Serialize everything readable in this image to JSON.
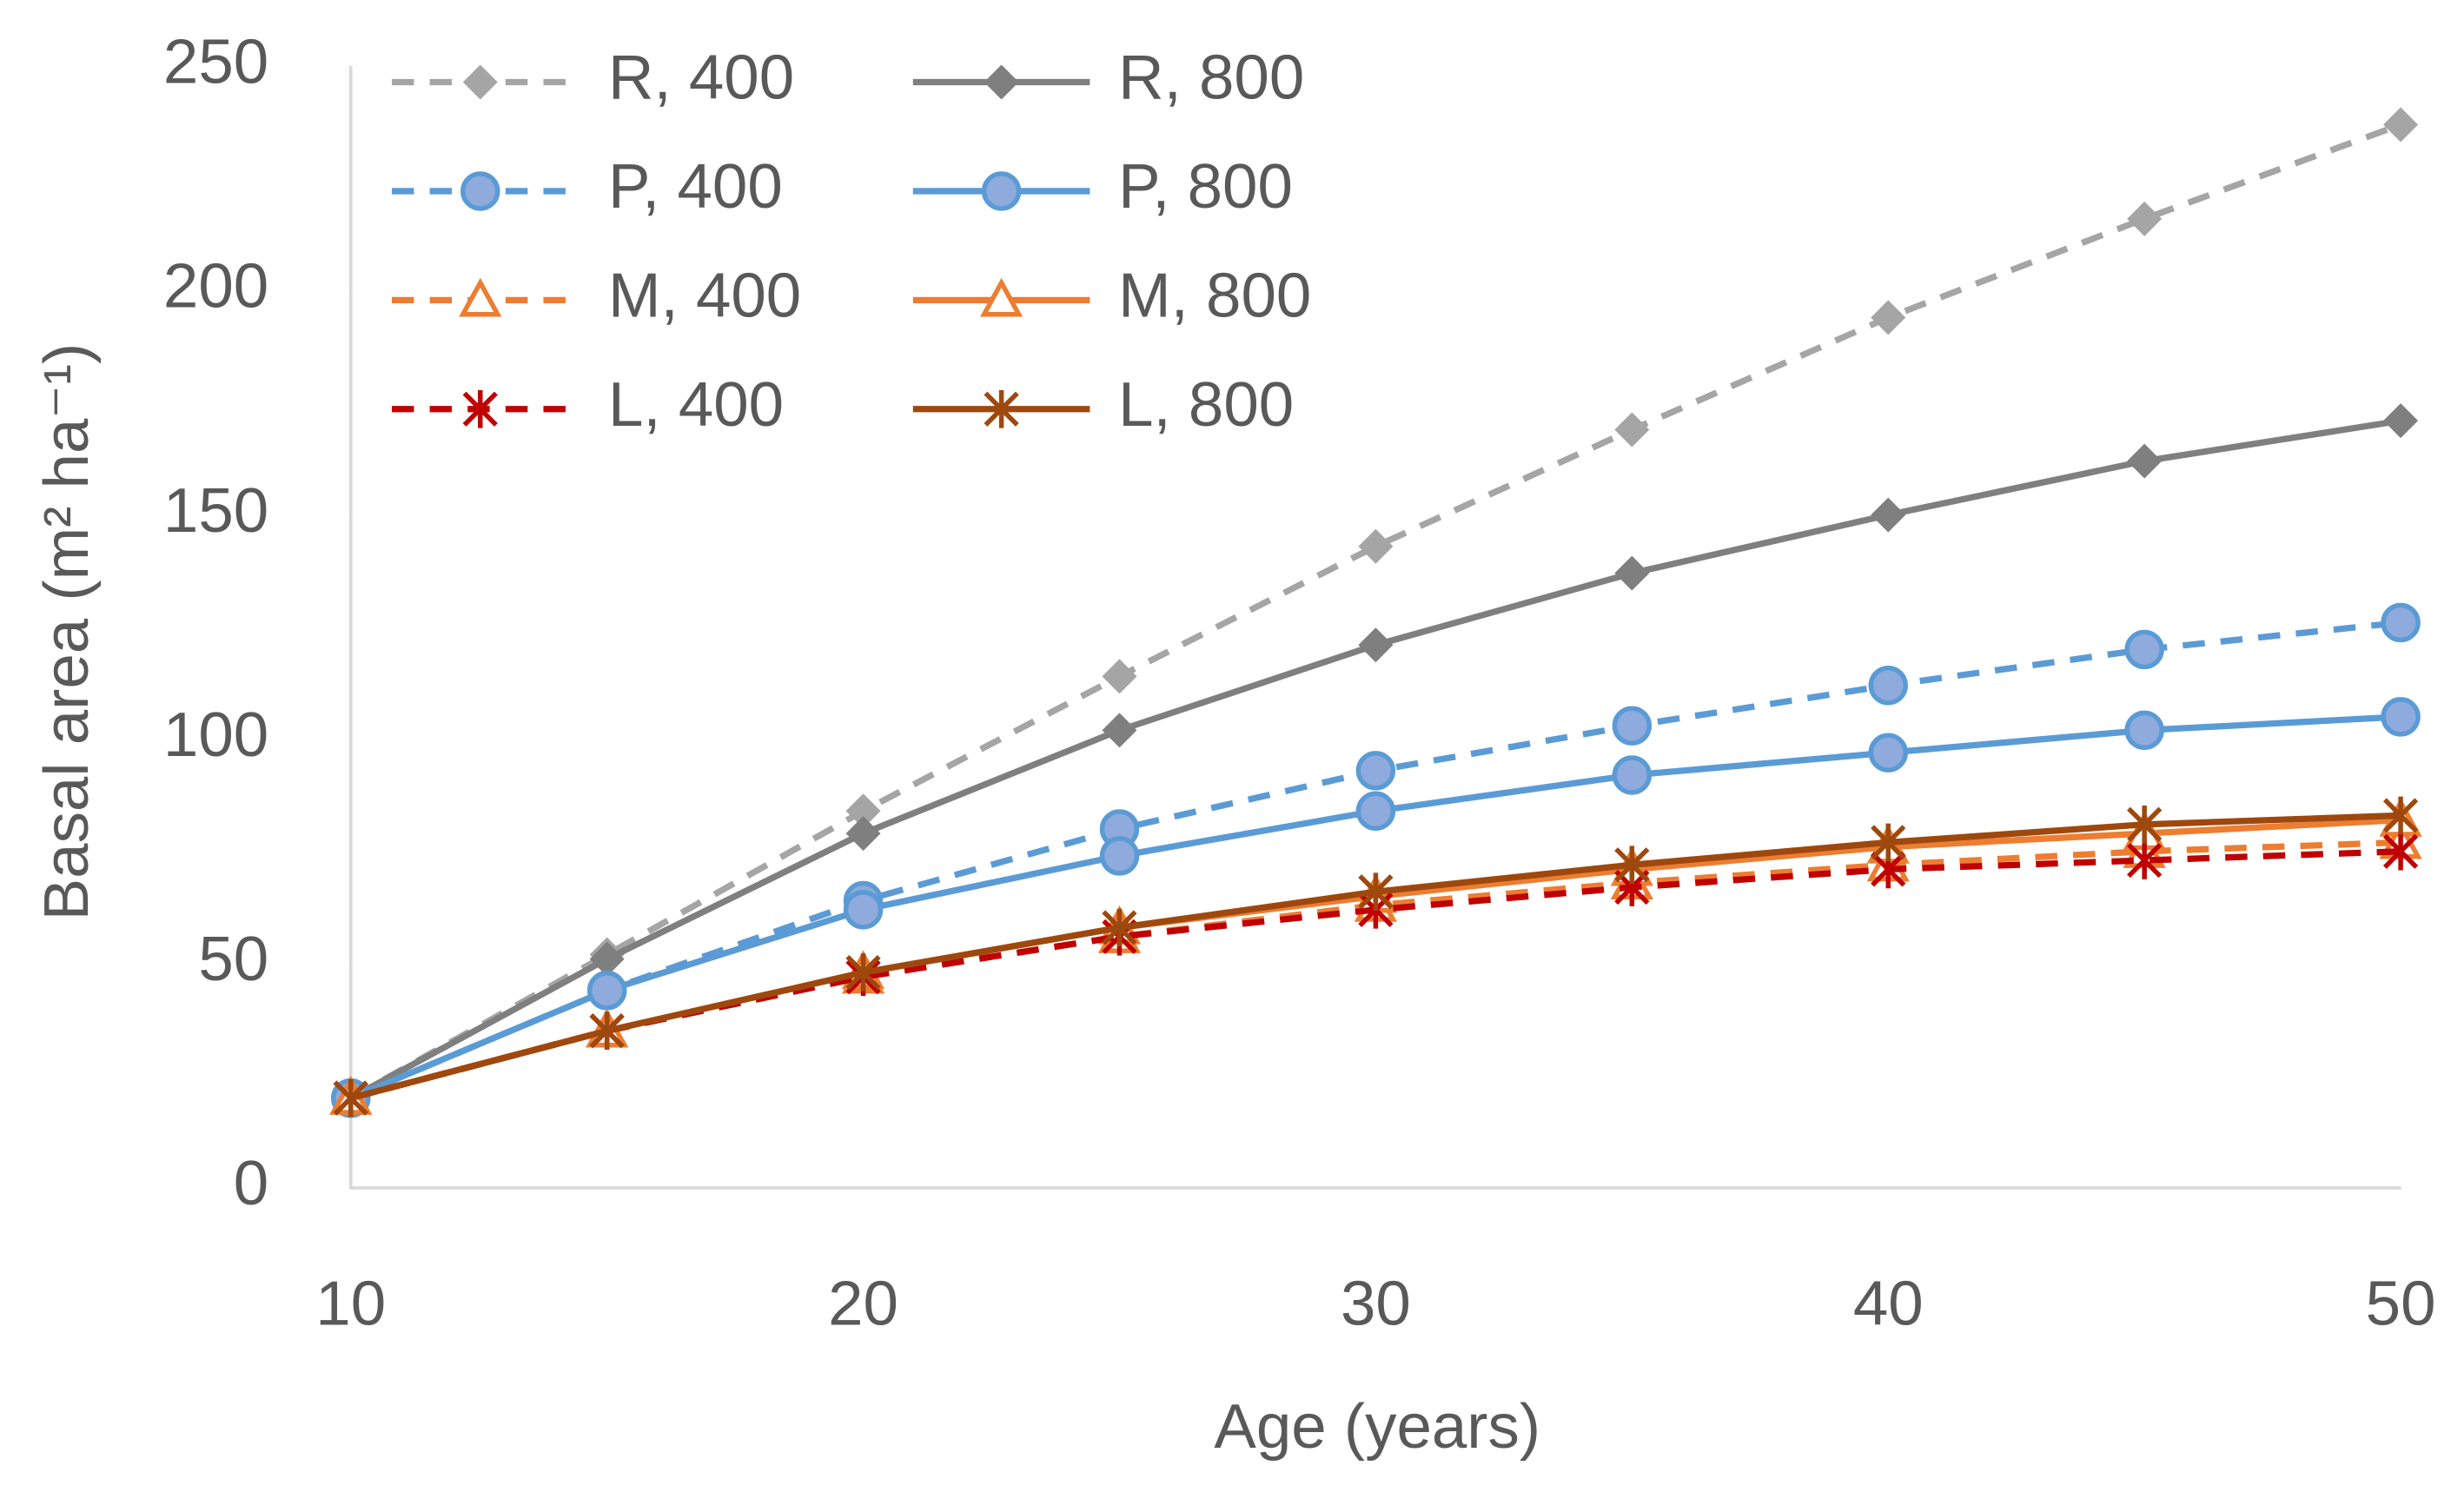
{
  "chart_data": {
    "type": "line",
    "x_label": "Age (years)",
    "y_label": "Basal area (m² ha⁻¹)",
    "x": [
      10,
      15,
      20,
      25,
      30,
      35,
      40,
      45,
      50
    ],
    "xlim": [
      10,
      50
    ],
    "xticks": [
      10,
      20,
      30,
      40,
      50
    ],
    "ylim": [
      0,
      250
    ],
    "yticks": [
      0,
      50,
      100,
      150,
      200,
      250
    ],
    "series": [
      {
        "name": "R, 400",
        "color": "#a5a5a5",
        "dashed": true,
        "marker": "diamond",
        "values": [
          20,
          52,
          84,
          114,
          143,
          169,
          194,
          216,
          237
        ]
      },
      {
        "name": "R, 800",
        "color": "#7f7f7f",
        "dashed": false,
        "marker": "diamond",
        "values": [
          20,
          51,
          79,
          102,
          121,
          137,
          150,
          162,
          171
        ]
      },
      {
        "name": "P, 400",
        "color": "#5b9bd5",
        "dashed": true,
        "marker": "circle",
        "values": [
          20,
          44,
          64,
          80,
          93,
          103,
          112,
          120,
          126
        ]
      },
      {
        "name": "P, 800",
        "color": "#5b9bd5",
        "dashed": false,
        "marker": "circle",
        "values": [
          20,
          44,
          62,
          74,
          84,
          92,
          97,
          102,
          105
        ]
      },
      {
        "name": "M, 400",
        "color": "#ed7d31",
        "dashed": true,
        "marker": "triangle",
        "values": [
          20,
          35,
          47,
          56,
          63,
          68,
          72,
          75,
          77
        ]
      },
      {
        "name": "M, 800",
        "color": "#ed7d31",
        "dashed": false,
        "marker": "triangle",
        "values": [
          20,
          35,
          48,
          58,
          65,
          71,
          76,
          79,
          82
        ]
      },
      {
        "name": "L, 400",
        "color": "#c00000",
        "dashed": true,
        "marker": "star",
        "values": [
          20,
          35,
          47,
          56,
          62,
          67,
          71,
          73,
          75
        ]
      },
      {
        "name": "L, 800",
        "color": "#9e480e",
        "dashed": false,
        "marker": "star",
        "values": [
          20,
          35,
          48,
          58,
          66,
          72,
          77,
          81,
          83
        ]
      }
    ]
  }
}
